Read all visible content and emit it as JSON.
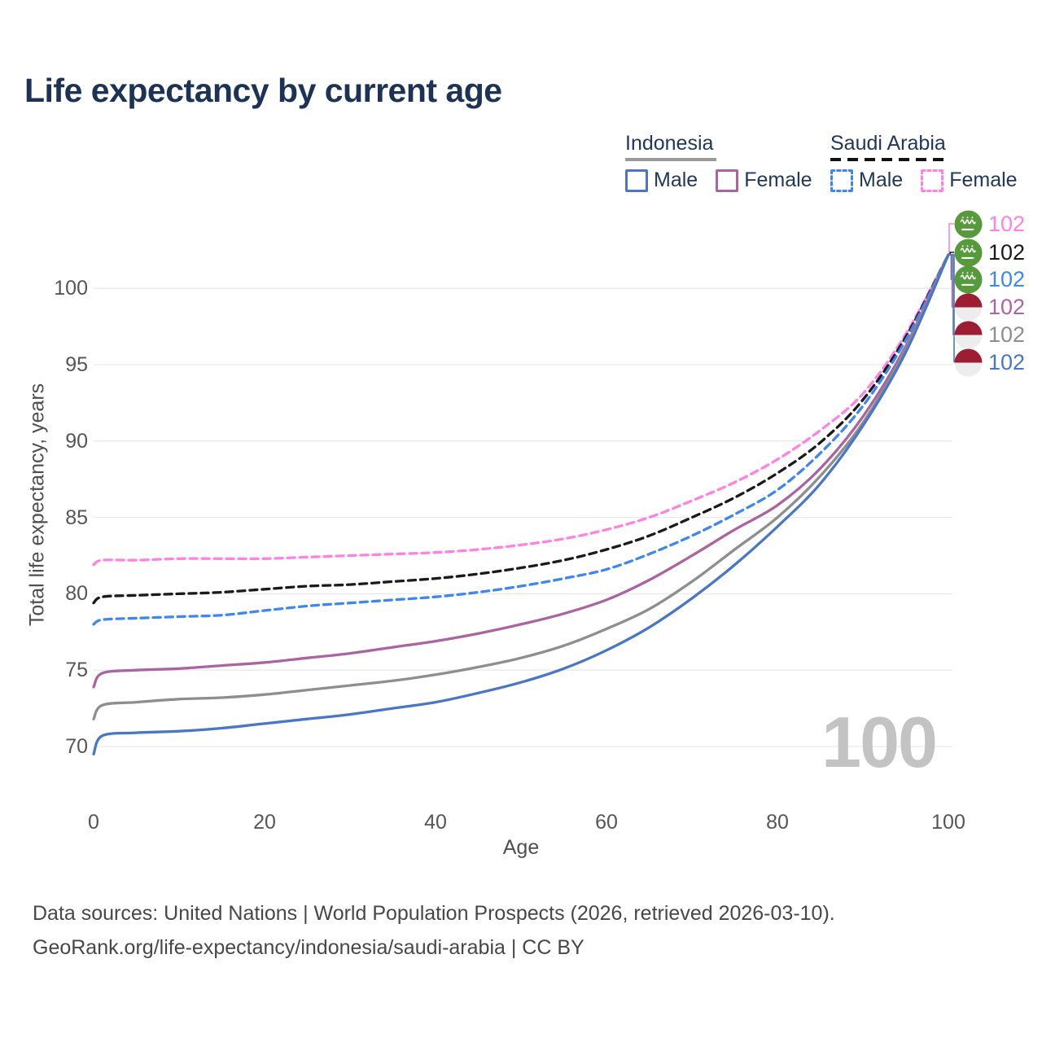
{
  "title": "Life expectancy by current age",
  "legend": {
    "groups": [
      {
        "label": "Indonesia",
        "line_style": "solid",
        "line_color": "#999999",
        "items": [
          {
            "label": "Male",
            "color": "#4a77c4",
            "dashed": false
          },
          {
            "label": "Female",
            "color": "#aa64a2",
            "dashed": false
          }
        ]
      },
      {
        "label": "Saudi Arabia",
        "line_style": "dashed",
        "line_color": "#111111",
        "items": [
          {
            "label": "Male",
            "color": "#3e86f0",
            "dashed": true
          },
          {
            "label": "Female",
            "color": "#ff82e2",
            "dashed": true
          }
        ]
      }
    ]
  },
  "chart_data": {
    "type": "line",
    "title": "Life expectancy by current age",
    "xlabel": "Age",
    "ylabel": "Total life expectancy, years",
    "xlim": [
      0,
      100
    ],
    "ylim": [
      67.5,
      103
    ],
    "xticks": [
      0,
      20,
      40,
      60,
      80,
      100
    ],
    "yticks": [
      70,
      75,
      80,
      85,
      90,
      95,
      100
    ],
    "grid": "horizontal",
    "legend_position": "top-right",
    "x": [
      0,
      1,
      5,
      10,
      15,
      20,
      25,
      30,
      35,
      40,
      45,
      50,
      55,
      60,
      65,
      70,
      75,
      80,
      85,
      90,
      95,
      100
    ],
    "series": [
      {
        "name": "Saudi Arabia Female",
        "country": "Saudi Arabia",
        "sex": "Female",
        "color": "#ff82e2",
        "dash": true,
        "flag": "saudi-arabia",
        "end_label": "102",
        "values": [
          81.9,
          82.2,
          82.2,
          82.3,
          82.3,
          82.3,
          82.4,
          82.5,
          82.6,
          82.7,
          82.9,
          83.2,
          83.6,
          84.2,
          85.0,
          86.1,
          87.3,
          88.8,
          90.7,
          93.1,
          97.0,
          102.2
        ]
      },
      {
        "name": "Saudi Arabia Overall",
        "country": "Saudi Arabia",
        "sex": "Overall",
        "color": "#1a1a1a",
        "dash": true,
        "flag": "saudi-arabia",
        "end_label": "102",
        "values": [
          79.4,
          79.8,
          79.9,
          80.0,
          80.1,
          80.3,
          80.5,
          80.6,
          80.8,
          81.0,
          81.3,
          81.7,
          82.2,
          82.9,
          83.8,
          85.0,
          86.3,
          87.9,
          89.9,
          92.7,
          96.8,
          102.2
        ]
      },
      {
        "name": "Saudi Arabia Male",
        "country": "Saudi Arabia",
        "sex": "Male",
        "color": "#3e86f0",
        "dash": true,
        "flag": "saudi-arabia",
        "end_label": "102",
        "values": [
          78.0,
          78.3,
          78.4,
          78.5,
          78.6,
          78.9,
          79.2,
          79.4,
          79.6,
          79.8,
          80.1,
          80.5,
          81.0,
          81.6,
          82.6,
          83.8,
          85.2,
          86.8,
          89.2,
          92.3,
          96.6,
          102.2
        ]
      },
      {
        "name": "Indonesia Female",
        "country": "Indonesia",
        "sex": "Female",
        "color": "#aa64a2",
        "dash": false,
        "flag": "indonesia",
        "end_label": "102",
        "values": [
          73.9,
          74.8,
          75.0,
          75.1,
          75.3,
          75.5,
          75.8,
          76.1,
          76.5,
          76.9,
          77.4,
          78.0,
          78.7,
          79.6,
          80.9,
          82.5,
          84.2,
          85.8,
          88.2,
          91.6,
          96.2,
          102.2
        ]
      },
      {
        "name": "Indonesia Overall",
        "country": "Indonesia",
        "sex": "Overall",
        "color": "#8e8e8e",
        "dash": false,
        "flag": "indonesia",
        "end_label": "102",
        "values": [
          71.8,
          72.7,
          72.9,
          73.1,
          73.2,
          73.4,
          73.7,
          74.0,
          74.3,
          74.7,
          75.2,
          75.8,
          76.6,
          77.7,
          79.0,
          80.8,
          82.9,
          85.0,
          87.7,
          91.2,
          96.0,
          102.2
        ]
      },
      {
        "name": "Indonesia Male",
        "country": "Indonesia",
        "sex": "Male",
        "color": "#4a77c4",
        "dash": false,
        "flag": "indonesia",
        "end_label": "102",
        "values": [
          69.5,
          70.7,
          70.9,
          71.0,
          71.2,
          71.5,
          71.8,
          72.1,
          72.5,
          72.9,
          73.5,
          74.2,
          75.1,
          76.3,
          77.8,
          79.7,
          81.9,
          84.4,
          87.2,
          91.0,
          95.8,
          102.2
        ]
      }
    ],
    "hover_age_watermark": "100"
  },
  "flag_colors": {
    "saudi_green": "#579a3c",
    "indonesia_red": "#9d1d33",
    "indonesia_white": "#ededed"
  },
  "caption": {
    "line1": "Data sources: United Nations | World Population Prospects (2026, retrieved 2026-03-10).",
    "line2": "GeoRank.org/life-expectancy/indonesia/saudi-arabia | CC BY"
  }
}
